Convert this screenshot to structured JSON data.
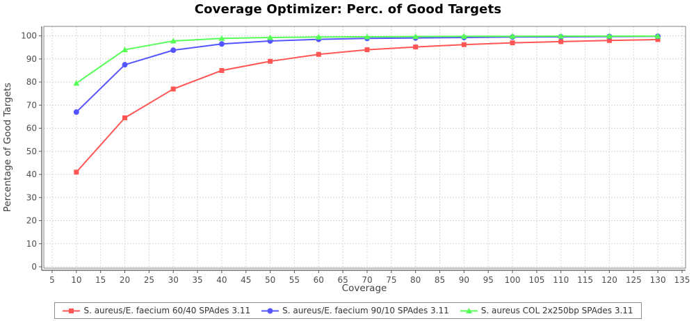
{
  "chart_data": {
    "type": "line",
    "title": "Coverage Optimizer: Perc. of Good Targets",
    "xlabel": "Coverage",
    "ylabel": "Percentage of Good Targets",
    "x": [
      10,
      20,
      30,
      40,
      50,
      60,
      70,
      80,
      90,
      100,
      110,
      120,
      130
    ],
    "series": [
      {
        "name": "S. aureus/E. faecium 60/40 SPAdes 3.11",
        "color": "#ff5555",
        "marker": "square",
        "values": [
          41,
          64.5,
          77,
          85,
          89,
          92,
          94,
          95.2,
          96.2,
          97,
          97.5,
          98,
          98.4
        ]
      },
      {
        "name": "S. aureus/E. faecium 90/10 SPAdes 3.11",
        "color": "#5555ff",
        "marker": "circle",
        "values": [
          67,
          87.5,
          93.8,
          96.5,
          97.8,
          98.5,
          98.9,
          99.1,
          99.3,
          99.5,
          99.6,
          99.7,
          99.8
        ]
      },
      {
        "name": "S. aureus COL 2x250bp SPAdes 3.11",
        "color": "#55ff55",
        "marker": "triangle",
        "values": [
          79.5,
          94,
          97.8,
          98.9,
          99.3,
          99.5,
          99.6,
          99.7,
          99.8,
          99.8,
          99.9,
          99.9,
          99.9
        ]
      }
    ],
    "xticks": [
      5,
      10,
      15,
      20,
      25,
      30,
      35,
      40,
      45,
      50,
      55,
      60,
      65,
      70,
      75,
      80,
      85,
      90,
      95,
      100,
      105,
      110,
      115,
      120,
      125,
      130,
      135
    ],
    "yticks": [
      0,
      10,
      20,
      30,
      40,
      50,
      60,
      70,
      80,
      90,
      100
    ],
    "xlim": [
      3.28,
      135.72
    ],
    "ylim": [
      -0.6,
      104.1
    ],
    "grid": true,
    "legend_position": "bottom",
    "colors": {
      "grid": "#d8d8d8",
      "plot_border": "#808080",
      "axis_line": "#545454",
      "tick": "#545454",
      "tick_label": "#4d4d4d",
      "axis_label": "#404040",
      "title": "#000000",
      "background": "#ffffff"
    }
  }
}
